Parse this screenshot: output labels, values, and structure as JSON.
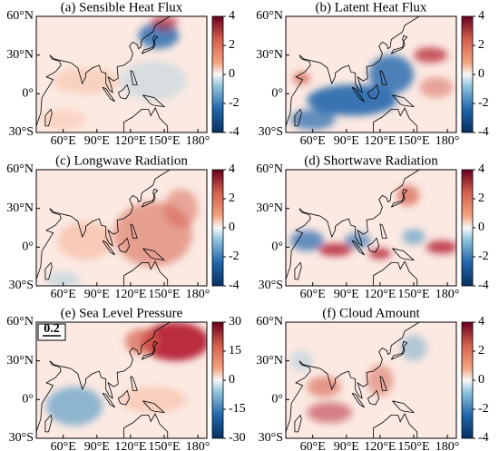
{
  "panels": [
    {
      "title": "(a) Sensible Heat Flux",
      "colorbar": {
        "lim": [
          -4,
          4
        ],
        "ticks": [
          4,
          2,
          0,
          -2,
          -4
        ]
      }
    },
    {
      "title": "(b) Latent Heat Flux",
      "colorbar": {
        "lim": [
          -4,
          4
        ],
        "ticks": [
          4,
          2,
          0,
          -2,
          -4
        ]
      }
    },
    {
      "title": "(c) Longwave Radiation",
      "colorbar": {
        "lim": [
          -4,
          4
        ],
        "ticks": [
          4,
          2,
          0,
          -2,
          -4
        ]
      }
    },
    {
      "title": "(d) Shortwave Radiation",
      "colorbar": {
        "lim": [
          -4,
          4
        ],
        "ticks": [
          4,
          2,
          0,
          -2,
          -4
        ]
      }
    },
    {
      "title": "(e) Sea Level Pressure",
      "colorbar": {
        "lim": [
          -30,
          30
        ],
        "ticks": [
          30,
          15,
          0,
          -15,
          -30
        ]
      }
    },
    {
      "title": "(f) Cloud Amount",
      "colorbar": {
        "lim": [
          -4,
          4
        ],
        "ticks": [
          4,
          2,
          0,
          -2,
          -4
        ]
      }
    }
  ],
  "map": {
    "xlim": [
      36,
      188
    ],
    "ylim": [
      -30,
      60
    ],
    "xticks": [
      {
        "value": 60,
        "label": "60°E"
      },
      {
        "value": 90,
        "label": "90°E"
      },
      {
        "value": 120,
        "label": "120°E"
      },
      {
        "value": 150,
        "label": "150°E"
      },
      {
        "value": 180,
        "label": "180°"
      }
    ],
    "yticks": [
      {
        "value": 60,
        "label": "60°N"
      },
      {
        "value": 30,
        "label": "30°N"
      },
      {
        "value": 0,
        "label": "0°"
      },
      {
        "value": -30,
        "label": "30°S"
      }
    ]
  },
  "reference_vector": "0.2"
}
